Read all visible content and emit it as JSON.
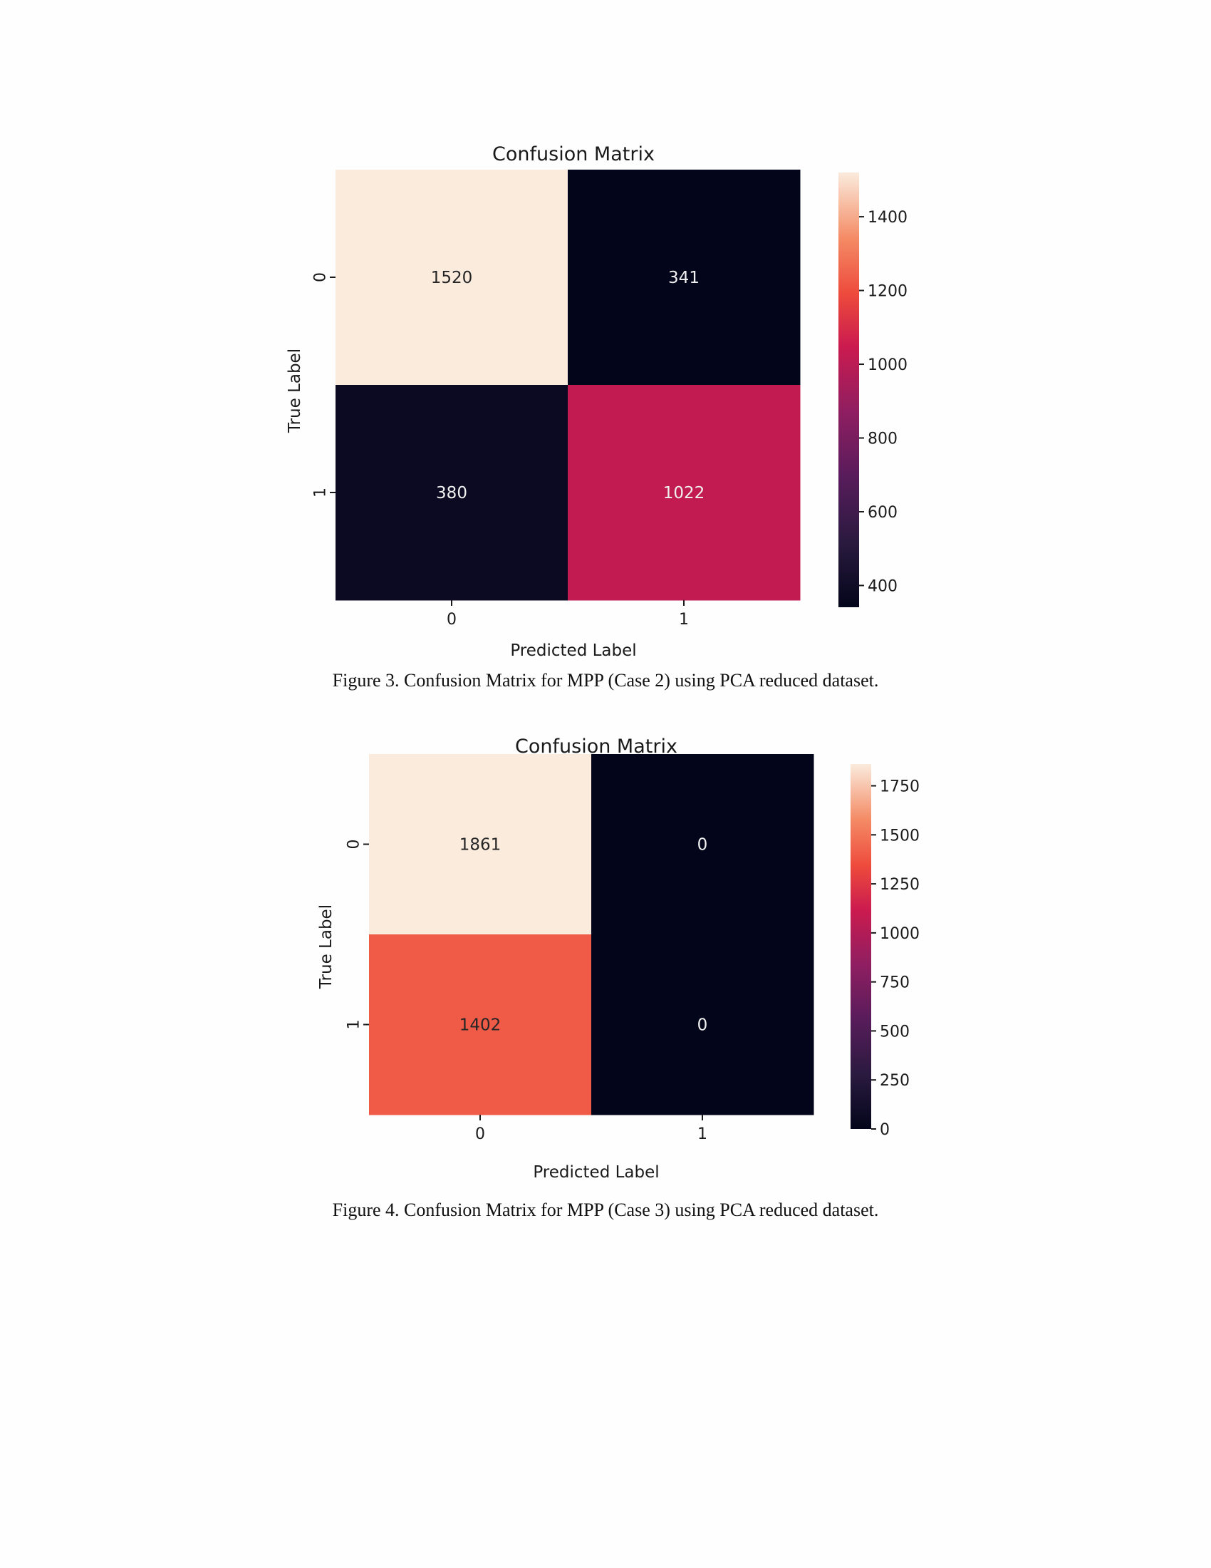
{
  "chart_data": [
    {
      "type": "heatmap",
      "title": "Confusion Matrix",
      "xlabel": "Predicted Label",
      "ylabel": "True Label",
      "x_categories": [
        "0",
        "1"
      ],
      "y_categories": [
        "0",
        "1"
      ],
      "values": [
        [
          1520,
          341
        ],
        [
          380,
          1022
        ]
      ],
      "colorbar": {
        "min": 341,
        "max": 1520,
        "ticks": [
          400,
          600,
          800,
          1000,
          1200,
          1400
        ]
      },
      "colormap": "rocket"
    },
    {
      "type": "heatmap",
      "title": "Confusion Matrix",
      "xlabel": "Predicted Label",
      "ylabel": "True Label",
      "x_categories": [
        "0",
        "1"
      ],
      "y_categories": [
        "0",
        "1"
      ],
      "values": [
        [
          1861,
          0
        ],
        [
          1402,
          0
        ]
      ],
      "colorbar": {
        "min": 0,
        "max": 1861,
        "ticks": [
          0,
          250,
          500,
          750,
          1000,
          1250,
          1500,
          1750
        ]
      },
      "colormap": "rocket"
    }
  ],
  "captions": [
    "Figure 3. Confusion Matrix for MPP (Case 2) using PCA reduced dataset.",
    "Figure 4. Confusion Matrix for MPP (Case 3) using PCA reduced dataset."
  ]
}
